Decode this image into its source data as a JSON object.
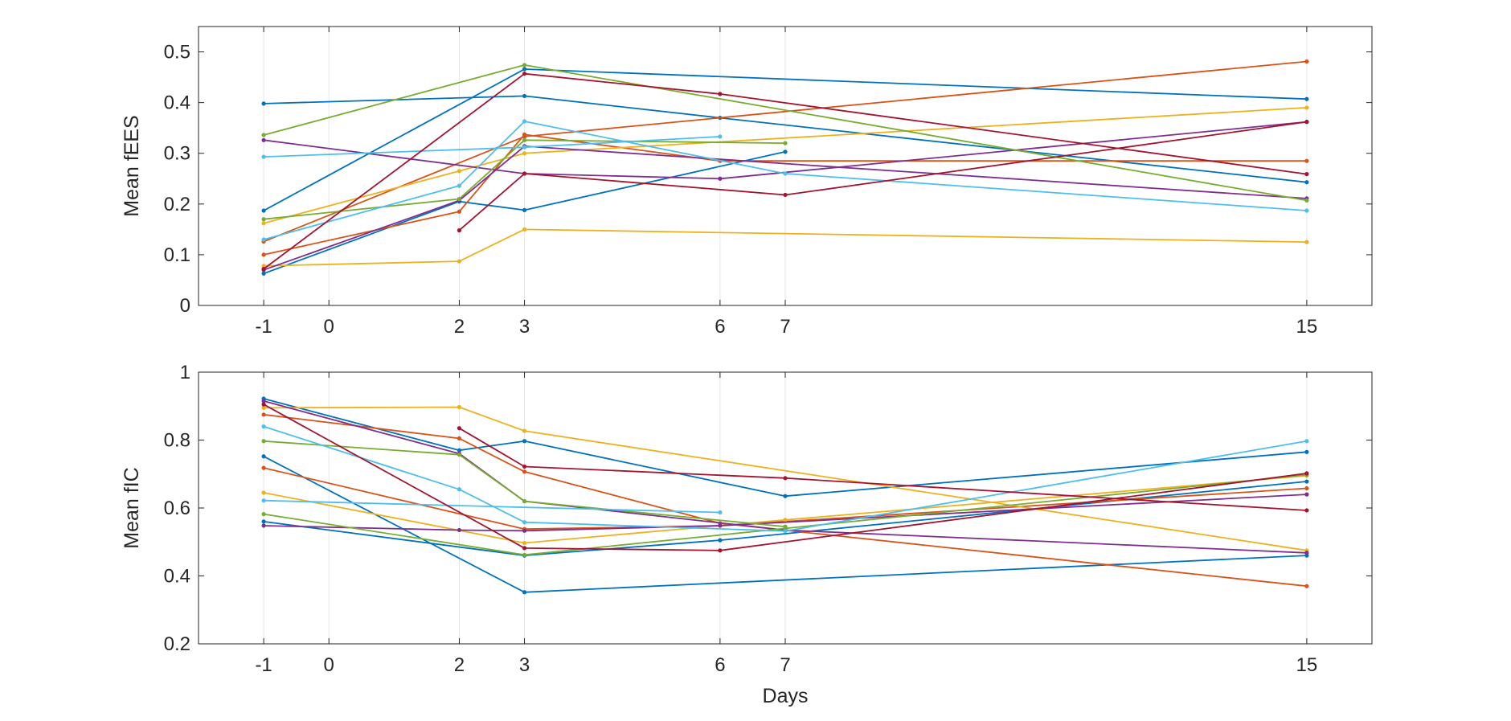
{
  "chart_data": [
    {
      "type": "line",
      "ylabel": "Mean fEES",
      "xlabel": "",
      "xlim": [
        -2,
        16
      ],
      "ylim": [
        0,
        0.55
      ],
      "xticks": [
        -1,
        0,
        2,
        3,
        6,
        7,
        15
      ],
      "xtick_labels": [
        "-1",
        "0",
        "2",
        "3",
        "6",
        "7",
        "15"
      ],
      "yticks": [
        0,
        0.1,
        0.2,
        0.3,
        0.4,
        0.5
      ],
      "ytick_labels": [
        "0",
        "0.1",
        "0.2",
        "0.3",
        "0.4",
        "0.5"
      ],
      "grid": "vertical lines at x ticks",
      "series": [
        {
          "color": "#0072BD",
          "points": [
            [
              -1,
              0.398
            ],
            [
              3,
              0.413
            ],
            [
              6,
              0.37
            ],
            [
              15,
              0.243
            ]
          ]
        },
        {
          "color": "#0072BD",
          "points": [
            [
              -1,
              0.187
            ],
            [
              3,
              0.466
            ],
            [
              15,
              0.407
            ]
          ]
        },
        {
          "color": "#0072BD",
          "points": [
            [
              -1,
              0.063
            ],
            [
              2,
              0.205
            ],
            [
              3,
              0.188
            ],
            [
              7,
              0.303
            ]
          ]
        },
        {
          "color": "#D95319",
          "points": [
            [
              -1,
              0.1
            ],
            [
              2,
              0.185
            ],
            [
              3,
              0.337
            ],
            [
              6,
              0.285
            ],
            [
              15,
              0.285
            ]
          ]
        },
        {
          "color": "#D95319",
          "points": [
            [
              -1,
              0.126
            ],
            [
              3,
              0.333
            ],
            [
              15,
              0.481
            ]
          ]
        },
        {
          "color": "#EDB120",
          "points": [
            [
              -1,
              0.078
            ],
            [
              2,
              0.087
            ],
            [
              3,
              0.15
            ],
            [
              15,
              0.125
            ]
          ]
        },
        {
          "color": "#EDB120",
          "points": [
            [
              -1,
              0.162
            ],
            [
              2,
              0.265
            ],
            [
              3,
              0.3
            ],
            [
              15,
              0.39
            ]
          ]
        },
        {
          "color": "#7E2F8E",
          "points": [
            [
              -1,
              0.326
            ],
            [
              3,
              0.26
            ],
            [
              6,
              0.25
            ],
            [
              15,
              0.362
            ]
          ]
        },
        {
          "color": "#7E2F8E",
          "points": [
            [
              -1,
              0.07
            ],
            [
              2,
              0.207
            ],
            [
              3,
              0.314
            ],
            [
              15,
              0.211
            ]
          ]
        },
        {
          "color": "#77AC30",
          "points": [
            [
              -1,
              0.336
            ],
            [
              3,
              0.474
            ],
            [
              15,
              0.207
            ]
          ]
        },
        {
          "color": "#77AC30",
          "points": [
            [
              -1,
              0.17
            ],
            [
              2,
              0.21
            ],
            [
              3,
              0.326
            ],
            [
              7,
              0.32
            ]
          ]
        },
        {
          "color": "#4DBEEE",
          "points": [
            [
              -1,
              0.293
            ],
            [
              3,
              0.312
            ],
            [
              6,
              0.333
            ]
          ]
        },
        {
          "color": "#4DBEEE",
          "points": [
            [
              -1,
              0.13
            ],
            [
              2,
              0.236
            ],
            [
              3,
              0.363
            ],
            [
              7,
              0.26
            ],
            [
              15,
              0.187
            ]
          ]
        },
        {
          "color": "#A2142F",
          "points": [
            [
              -1,
              0.072
            ],
            [
              3,
              0.457
            ],
            [
              6,
              0.417
            ],
            [
              15,
              0.259
            ]
          ]
        },
        {
          "color": "#A2142F",
          "points": [
            [
              2,
              0.148
            ],
            [
              3,
              0.26
            ],
            [
              7,
              0.218
            ],
            [
              15,
              0.362
            ]
          ]
        }
      ]
    },
    {
      "type": "line",
      "ylabel": "Mean fIC",
      "xlabel": "Days",
      "xlim": [
        -2,
        16
      ],
      "ylim": [
        0.2,
        1
      ],
      "xticks": [
        -1,
        0,
        2,
        3,
        6,
        7,
        15
      ],
      "xtick_labels": [
        "-1",
        "0",
        "2",
        "3",
        "6",
        "7",
        "15"
      ],
      "yticks": [
        0.2,
        0.4,
        0.6,
        0.8,
        1
      ],
      "ytick_labels": [
        "0.2",
        "0.4",
        "0.6",
        "0.8",
        "1"
      ],
      "grid": "vertical lines at x ticks",
      "series": [
        {
          "color": "#0072BD",
          "points": [
            [
              -1,
              0.922
            ],
            [
              2,
              0.77
            ],
            [
              3,
              0.797
            ],
            [
              7,
              0.635
            ],
            [
              15,
              0.765
            ]
          ]
        },
        {
          "color": "#0072BD",
          "points": [
            [
              -1,
              0.752
            ],
            [
              3,
              0.352
            ],
            [
              15,
              0.46
            ]
          ]
        },
        {
          "color": "#0072BD",
          "points": [
            [
              -1,
              0.56
            ],
            [
              3,
              0.46
            ],
            [
              6,
              0.505
            ],
            [
              15,
              0.678
            ]
          ]
        },
        {
          "color": "#D95319",
          "points": [
            [
              -1,
              0.875
            ],
            [
              2,
              0.805
            ],
            [
              3,
              0.707
            ],
            [
              6,
              0.555
            ],
            [
              15,
              0.37
            ]
          ]
        },
        {
          "color": "#D95319",
          "points": [
            [
              -1,
              0.718
            ],
            [
              3,
              0.538
            ],
            [
              6,
              0.548
            ],
            [
              15,
              0.658
            ]
          ]
        },
        {
          "color": "#EDB120",
          "points": [
            [
              -1,
              0.895
            ],
            [
              2,
              0.897
            ],
            [
              3,
              0.827
            ],
            [
              15,
              0.475
            ]
          ]
        },
        {
          "color": "#EDB120",
          "points": [
            [
              -1,
              0.645
            ],
            [
              3,
              0.497
            ],
            [
              7,
              0.565
            ],
            [
              15,
              0.695
            ]
          ]
        },
        {
          "color": "#7E2F8E",
          "points": [
            [
              -1,
              0.915
            ],
            [
              2,
              0.76
            ],
            [
              3,
              0.62
            ],
            [
              7,
              0.535
            ],
            [
              15,
              0.468
            ]
          ]
        },
        {
          "color": "#7E2F8E",
          "points": [
            [
              -1,
              0.548
            ],
            [
              2,
              0.535
            ],
            [
              3,
              0.533
            ],
            [
              6,
              0.548
            ],
            [
              15,
              0.64
            ]
          ]
        },
        {
          "color": "#77AC30",
          "points": [
            [
              -1,
              0.797
            ],
            [
              2,
              0.757
            ],
            [
              3,
              0.62
            ],
            [
              7,
              0.545
            ]
          ]
        },
        {
          "color": "#77AC30",
          "points": [
            [
              -1,
              0.582
            ],
            [
              3,
              0.462
            ],
            [
              7,
              0.54
            ],
            [
              15,
              0.698
            ]
          ]
        },
        {
          "color": "#4DBEEE",
          "points": [
            [
              -1,
              0.84
            ],
            [
              2,
              0.655
            ],
            [
              3,
              0.558
            ],
            [
              7,
              0.532
            ],
            [
              15,
              0.797
            ]
          ]
        },
        {
          "color": "#4DBEEE",
          "points": [
            [
              -1,
              0.622
            ],
            [
              6,
              0.587
            ]
          ]
        },
        {
          "color": "#A2142F",
          "points": [
            [
              -1,
              0.905
            ],
            [
              3,
              0.482
            ],
            [
              6,
              0.475
            ],
            [
              15,
              0.702
            ]
          ]
        },
        {
          "color": "#A2142F",
          "points": [
            [
              2,
              0.835
            ],
            [
              3,
              0.722
            ],
            [
              7,
              0.688
            ],
            [
              15,
              0.593
            ]
          ]
        }
      ]
    }
  ]
}
